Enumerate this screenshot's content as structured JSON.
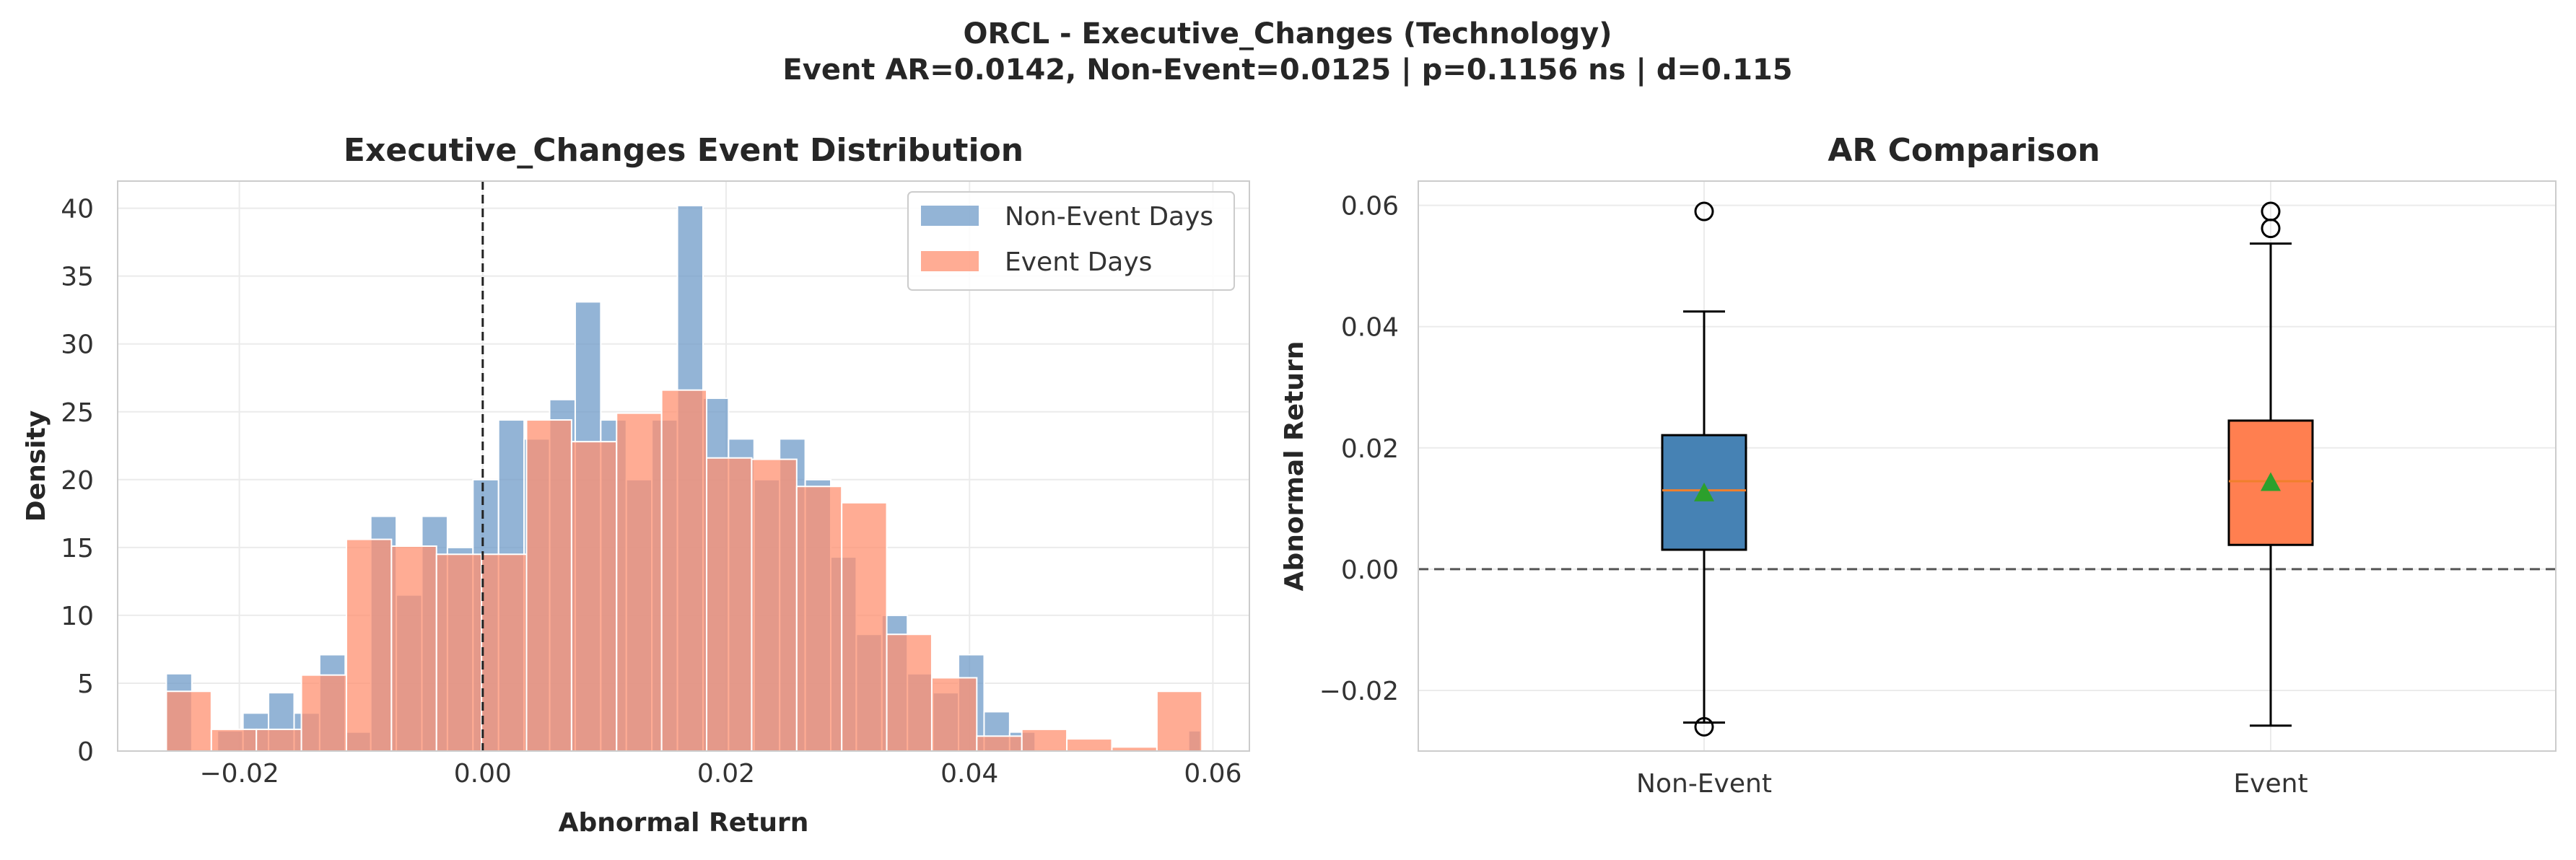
{
  "figure": {
    "suptitle_line1": "ORCL - Executive_Changes (Technology)",
    "suptitle_line2": "Event AR=0.0142, Non-Event=0.0125 | p=0.1156 ns | d=0.115"
  },
  "chart_data": [
    {
      "type": "histogram",
      "title": "Executive_Changes Event Distribution",
      "xlabel": "Abnormal Return",
      "ylabel": "Density",
      "xlim": [
        -0.03,
        0.063
      ],
      "ylim": [
        0,
        42
      ],
      "xticks": [
        -0.02,
        0.0,
        0.02,
        0.04,
        0.06
      ],
      "xtick_labels": [
        "−0.02",
        "0.00",
        "0.02",
        "0.04",
        "0.06"
      ],
      "yticks": [
        0,
        5,
        10,
        15,
        20,
        25,
        30,
        35,
        40
      ],
      "ytick_labels": [
        "0",
        "5",
        "10",
        "15",
        "20",
        "25",
        "30",
        "35",
        "40"
      ],
      "grid": true,
      "legend_position": "top-right",
      "reference_line": {
        "x": 0.0,
        "style": "dashed",
        "color": "#222222"
      },
      "series": [
        {
          "name": "Non-Event Days",
          "color": "#6f9bc8",
          "bins": [
            [
              -0.026,
              -0.0239,
              5.7
            ],
            [
              -0.0239,
              -0.0218,
              0.0
            ],
            [
              -0.0218,
              -0.0197,
              1.5
            ],
            [
              -0.0197,
              -0.0176,
              2.8
            ],
            [
              -0.0176,
              -0.0155,
              4.3
            ],
            [
              -0.0155,
              -0.0134,
              2.8
            ],
            [
              -0.0134,
              -0.0113,
              7.1
            ],
            [
              -0.0113,
              -0.0092,
              1.4
            ],
            [
              -0.0092,
              -0.0071,
              17.3
            ],
            [
              -0.0071,
              -0.005,
              11.5
            ],
            [
              -0.005,
              -0.0029,
              17.3
            ],
            [
              -0.0029,
              -0.0008,
              15.0
            ],
            [
              -0.0008,
              0.0013,
              20.0
            ],
            [
              0.0013,
              0.0034,
              24.4
            ],
            [
              0.0034,
              0.0055,
              23.0
            ],
            [
              0.0055,
              0.0076,
              25.9
            ],
            [
              0.0076,
              0.0097,
              33.1
            ],
            [
              0.0097,
              0.0118,
              24.4
            ],
            [
              0.0118,
              0.0139,
              20.0
            ],
            [
              0.0139,
              0.016,
              24.4
            ],
            [
              0.016,
              0.0181,
              40.2
            ],
            [
              0.0181,
              0.0202,
              26.0
            ],
            [
              0.0202,
              0.0223,
              23.0
            ],
            [
              0.0223,
              0.0244,
              20.0
            ],
            [
              0.0244,
              0.0265,
              23.0
            ],
            [
              0.0265,
              0.0286,
              20.0
            ],
            [
              0.0286,
              0.0307,
              14.3
            ],
            [
              0.0307,
              0.0328,
              8.6
            ],
            [
              0.0328,
              0.0349,
              10.0
            ],
            [
              0.0349,
              0.037,
              5.7
            ],
            [
              0.037,
              0.0391,
              4.3
            ],
            [
              0.0391,
              0.0412,
              7.1
            ],
            [
              0.0412,
              0.0433,
              2.9
            ],
            [
              0.0433,
              0.0454,
              1.4
            ],
            [
              0.0454,
              0.0475,
              0.0
            ],
            [
              0.0475,
              0.0496,
              0.0
            ],
            [
              0.0496,
              0.0517,
              0.0
            ],
            [
              0.0517,
              0.0538,
              0.0
            ],
            [
              0.0538,
              0.0559,
              0.0
            ],
            [
              0.0559,
              0.058,
              0.0
            ],
            [
              0.058,
              0.059,
              1.5
            ]
          ]
        },
        {
          "name": "Event Days",
          "color": "#ff9070",
          "bins": [
            [
              -0.026,
              -0.0223,
              4.4
            ],
            [
              -0.0223,
              -0.0186,
              1.6
            ],
            [
              -0.0186,
              -0.0149,
              1.6
            ],
            [
              -0.0149,
              -0.0112,
              5.6
            ],
            [
              -0.0112,
              -0.0075,
              15.6
            ],
            [
              -0.0075,
              -0.0038,
              15.1
            ],
            [
              -0.0038,
              -0.0001,
              14.5
            ],
            [
              -0.0001,
              0.0036,
              14.5
            ],
            [
              0.0036,
              0.0073,
              24.4
            ],
            [
              0.0073,
              0.011,
              22.8
            ],
            [
              0.011,
              0.0147,
              24.9
            ],
            [
              0.0147,
              0.0184,
              26.6
            ],
            [
              0.0184,
              0.0221,
              21.6
            ],
            [
              0.0221,
              0.0258,
              21.5
            ],
            [
              0.0258,
              0.0295,
              19.5
            ],
            [
              0.0295,
              0.0332,
              18.3
            ],
            [
              0.0332,
              0.0369,
              8.6
            ],
            [
              0.0369,
              0.0406,
              5.4
            ],
            [
              0.0406,
              0.0443,
              1.1
            ],
            [
              0.0443,
              0.048,
              1.6
            ],
            [
              0.048,
              0.0517,
              0.9
            ],
            [
              0.0517,
              0.0554,
              0.3
            ],
            [
              0.0554,
              0.0591,
              4.4
            ]
          ]
        }
      ]
    },
    {
      "type": "boxplot",
      "title": "AR Comparison",
      "xlabel": "",
      "ylabel": "Abnormal Return",
      "ylim": [
        -0.03,
        0.064
      ],
      "yticks": [
        -0.02,
        0.0,
        0.02,
        0.04,
        0.06
      ],
      "ytick_labels": [
        "−0.02",
        "0.00",
        "0.02",
        "0.04",
        "0.06"
      ],
      "grid": true,
      "reference_line": {
        "y": 0.0,
        "style": "dashed",
        "color": "#555555"
      },
      "median_color": "#f07f2c",
      "mean_marker_color": "#2ca02c",
      "categories": [
        "Non-Event",
        "Event"
      ],
      "boxes": [
        {
          "name": "Non-Event",
          "color": "#4682b4",
          "whisker_low": -0.0253,
          "q1": 0.0032,
          "median": 0.013,
          "q3": 0.0221,
          "whisker_high": 0.0425,
          "mean": 0.0125,
          "outliers": [
            0.059,
            -0.026
          ]
        },
        {
          "name": "Event",
          "color": "#ff7f50",
          "whisker_low": -0.0258,
          "q1": 0.004,
          "median": 0.0145,
          "q3": 0.0245,
          "whisker_high": 0.0537,
          "mean": 0.0142,
          "outliers": [
            0.059,
            0.0562
          ]
        }
      ]
    }
  ]
}
